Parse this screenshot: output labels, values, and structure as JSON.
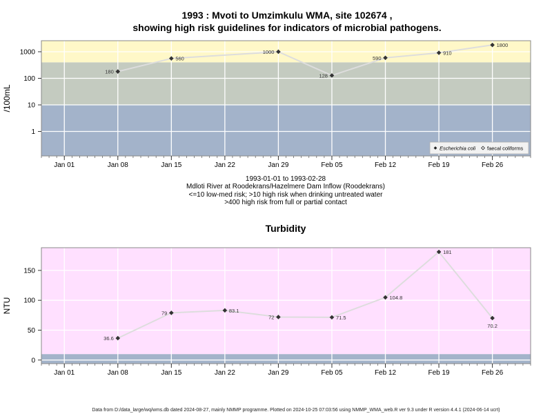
{
  "footer": "Data from D:/data_large/wq/wms.db dated 2024-08-27, mainly NMMP programme. Plotted on 2024-10-25 07:03:56 using NMMP_WMA_web.R ver 9.3 under R version 4.4.1 (2024-06-14 ucrt)",
  "colors": {
    "high_risk_band": "#fff8c8",
    "med_band": "#c4cbc0",
    "low_band": "#a3b3ca",
    "turbidity_bg": "#ffe0ff",
    "turbidity_low_band": "#a3b3ca",
    "line": "#dddddd",
    "marker": "#333333"
  },
  "chart_data": [
    {
      "type": "line",
      "title_lines": [
        "1993 : Mvoti to Umzimkulu WMA, site 102674 ,",
        "showing high risk guidelines for indicators of microbial pathogens."
      ],
      "ylabel": "/100mL",
      "yscale": "log",
      "yticks": [
        1,
        10,
        100,
        1000
      ],
      "ytick_labels": [
        "1",
        "10",
        "100",
        "1000"
      ],
      "ylim": [
        0.12,
        2600
      ],
      "bands": [
        {
          "from": 0.12,
          "to": 10,
          "color_key": "low_band"
        },
        {
          "from": 10,
          "to": 400,
          "color_key": "med_band"
        },
        {
          "from": 400,
          "to": 2600,
          "color_key": "high_risk_band"
        }
      ],
      "xlim": [
        "1992-12-29",
        "1993-03-03"
      ],
      "xticks": [
        "1993-01-01",
        "1993-01-08",
        "1993-01-15",
        "1993-01-22",
        "1993-01-29",
        "1993-02-05",
        "1993-02-12",
        "1993-02-19",
        "1993-02-26"
      ],
      "xtick_labels": [
        "Jan 01",
        "Jan 08",
        "Jan 15",
        "Jan 22",
        "Jan 29",
        "Feb 05",
        "Feb 12",
        "Feb 19",
        "Feb 26"
      ],
      "series": [
        {
          "name": "Escherichia coli",
          "marker": "diamond-filled",
          "points": [
            {
              "x": "1993-01-08",
              "y": 180,
              "label": "180",
              "label_side": "left"
            },
            {
              "x": "1993-01-15",
              "y": 560,
              "label": "560",
              "label_side": "right"
            },
            {
              "x": "1993-01-29",
              "y": 1000,
              "label": "1000",
              "label_side": "left"
            },
            {
              "x": "1993-02-05",
              "y": 128,
              "label": "128",
              "label_side": "left"
            },
            {
              "x": "1993-02-12",
              "y": 590,
              "label": "590",
              "label_side": "left"
            },
            {
              "x": "1993-02-19",
              "y": 910,
              "label": "910",
              "label_side": "right"
            },
            {
              "x": "1993-02-26",
              "y": 1800,
              "label": "1800",
              "label_side": "right"
            }
          ]
        }
      ],
      "legend": {
        "placement": "bottom-right",
        "entries": [
          {
            "label": "Escherichia coli",
            "italic": true,
            "marker": "diamond-filled"
          },
          {
            "label": "faecal coliforms",
            "italic": false,
            "marker": "diamond-open"
          }
        ]
      },
      "caption_lines": [
        "1993-01-01 to 1993-02-28",
        "Mdloti River at Roodekrans/Hazelmere Dam Inflow (Roodekrans)",
        "<=10 low-med risk; >10 high risk when drinking untreated water",
        ">400 high risk from full or partial contact"
      ]
    },
    {
      "type": "line",
      "title": "Turbidity",
      "ylabel": "NTU",
      "yscale": "linear",
      "yticks": [
        0,
        50,
        100,
        150
      ],
      "ytick_labels": [
        "0",
        "50",
        "100",
        "150"
      ],
      "ylim": [
        -6,
        188
      ],
      "bands": [
        {
          "from": -6,
          "to": 10,
          "color_key": "turbidity_low_band"
        },
        {
          "from": 10,
          "to": 188,
          "color_key": "turbidity_bg"
        }
      ],
      "xlim": [
        "1992-12-29",
        "1993-03-03"
      ],
      "xticks": [
        "1993-01-01",
        "1993-01-08",
        "1993-01-15",
        "1993-01-22",
        "1993-01-29",
        "1993-02-05",
        "1993-02-12",
        "1993-02-19",
        "1993-02-26"
      ],
      "xtick_labels": [
        "Jan 01",
        "Jan 08",
        "Jan 15",
        "Jan 22",
        "Jan 29",
        "Feb 05",
        "Feb 12",
        "Feb 19",
        "Feb 26"
      ],
      "series": [
        {
          "marker": "diamond-filled",
          "points": [
            {
              "x": "1993-01-08",
              "y": 36.6,
              "label": "36.6",
              "label_side": "left"
            },
            {
              "x": "1993-01-15",
              "y": 79,
              "label": "79",
              "label_side": "left"
            },
            {
              "x": "1993-01-22",
              "y": 83.1,
              "label": "83.1",
              "label_side": "right"
            },
            {
              "x": "1993-01-29",
              "y": 72,
              "label": "72",
              "label_side": "left"
            },
            {
              "x": "1993-02-05",
              "y": 71.5,
              "label": "71.5",
              "label_side": "right"
            },
            {
              "x": "1993-02-12",
              "y": 104.8,
              "label": "104.8",
              "label_side": "right"
            },
            {
              "x": "1993-02-19",
              "y": 181,
              "label": "181",
              "label_side": "right"
            },
            {
              "x": "1993-02-26",
              "y": 70.2,
              "label": "70.2",
              "label_side": "below"
            }
          ]
        }
      ]
    }
  ]
}
